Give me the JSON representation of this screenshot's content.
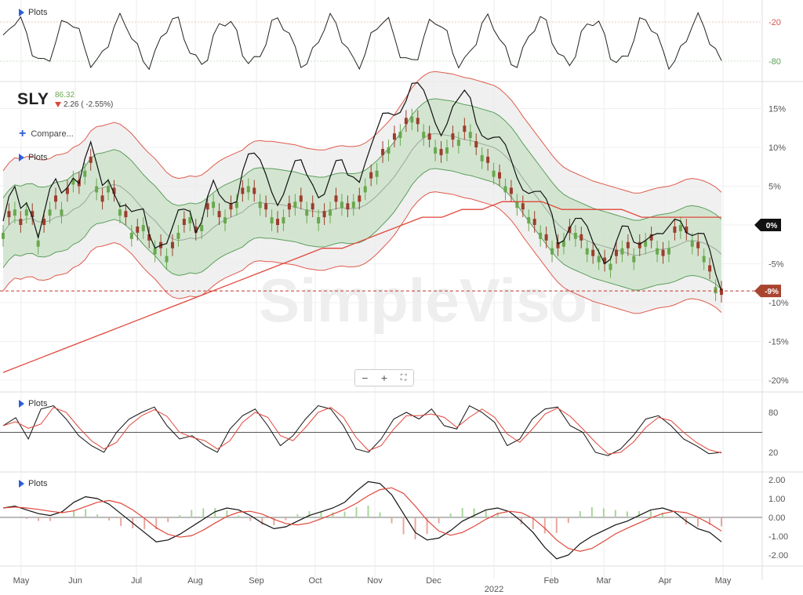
{
  "panels": {
    "top_plots_label": "Plots",
    "main_plots_label": "Plots",
    "stoch_plots_label": "Plots",
    "macd_plots_label": "Plots",
    "compare_label": "Compare..."
  },
  "symbol": {
    "ticker": "SLY",
    "last": "86.32",
    "change": "2.26 ( -2.55%)"
  },
  "watermark": "SimpleVisor",
  "zoom": {
    "minus": "−",
    "plus": "+",
    "fit": "⛶"
  },
  "colors": {
    "price": "#111111",
    "candle_up": "#6aa84f",
    "candle_down": "#9c3d2c",
    "inner_band_fill": "#cfe3cd",
    "inner_band_line": "#5c9e5c",
    "outer_band_fill": "#ececec",
    "outer_band_line": "#e05a4c",
    "ma_long": "#e0463a",
    "ma_mid": "#9aa79a",
    "signal": "#e0463a",
    "overbought_fill": "#f2b8b0",
    "oversold_fill": "#bfe0bf"
  },
  "chart_data": {
    "type": "line",
    "x_labels": [
      "May",
      "Jun",
      "Jul",
      "Aug",
      "Sep",
      "Oct",
      "Nov",
      "Dec",
      "2022",
      "Feb",
      "Mar",
      "Apr",
      "May"
    ],
    "y_ticks_pct": [
      "15%",
      "10%",
      "5%",
      "0%",
      "-5%",
      "-10%",
      "-15%",
      "-20%"
    ],
    "current_marker": "0%",
    "current_price_marker": "-9%",
    "top_oscillator_ticks": [
      "-20",
      "-80"
    ],
    "stochastic_ticks": [
      "80",
      "20"
    ],
    "macd_ticks": [
      "2.00",
      "1.00",
      "0.00",
      "-1.00",
      "-2.00"
    ],
    "price_pct": [
      -1,
      1,
      2,
      0,
      2,
      1,
      -2,
      0,
      2,
      3,
      2,
      4,
      6,
      5,
      7,
      8,
      5,
      3,
      5,
      4,
      2,
      1,
      -1,
      -1,
      0,
      -2,
      -3,
      -3,
      -4,
      -3,
      -1,
      0,
      1,
      -1,
      0,
      2,
      3,
      1,
      1,
      2,
      3,
      4,
      5,
      4,
      3,
      2,
      1,
      0,
      1,
      2,
      3,
      3,
      2,
      2,
      1,
      1,
      2,
      3,
      3,
      2,
      3,
      3,
      5,
      6,
      7,
      9,
      10,
      11,
      12,
      13,
      14,
      13,
      12,
      11,
      10,
      9,
      10,
      11,
      11,
      12,
      12,
      10,
      9,
      8,
      7,
      6,
      5,
      4,
      3,
      2,
      1,
      0,
      -1,
      -2,
      -3,
      -3,
      -2,
      -1,
      -1,
      -2,
      -3,
      -4,
      -4,
      -5,
      -5,
      -4,
      -3,
      -3,
      -4,
      -3,
      -2,
      -2,
      -3,
      -4,
      -3,
      -1,
      0,
      -1,
      -2,
      -3,
      -4,
      -6,
      -8,
      -9
    ],
    "ma_long_pct": [
      -19,
      -18,
      -17,
      -16,
      -15,
      -14,
      -13,
      -12,
      -11,
      -10,
      -9,
      -8,
      -7,
      -6,
      -5,
      -4,
      -3,
      -3,
      -2,
      -1,
      0,
      1,
      1,
      2,
      2,
      3,
      3,
      3,
      2,
      2,
      2,
      2,
      1,
      1,
      1,
      1,
      1
    ],
    "stochastic": [
      60,
      72,
      40,
      85,
      90,
      70,
      45,
      30,
      20,
      50,
      70,
      80,
      88,
      60,
      40,
      45,
      30,
      20,
      55,
      75,
      85,
      60,
      30,
      45,
      70,
      90,
      85,
      60,
      25,
      20,
      40,
      70,
      80,
      70,
      85,
      60,
      55,
      90,
      80,
      65,
      30,
      40,
      70,
      85,
      88,
      60,
      50,
      20,
      15,
      25,
      45,
      70,
      75,
      60,
      40,
      30,
      18,
      20
    ],
    "macd": [
      0.5,
      0.6,
      0.4,
      0.2,
      0.1,
      0.3,
      0.8,
      1.1,
      1.0,
      0.7,
      0.2,
      -0.3,
      -0.8,
      -1.3,
      -1.2,
      -0.9,
      -0.5,
      -0.1,
      0.3,
      0.5,
      0.4,
      0.1,
      -0.3,
      -0.6,
      -0.5,
      -0.2,
      0.1,
      0.3,
      0.5,
      0.8,
      1.4,
      1.9,
      1.8,
      1.2,
      0.2,
      -0.8,
      -1.2,
      -1.1,
      -0.7,
      -0.2,
      0.1,
      0.4,
      0.5,
      0.3,
      -0.2,
      -0.8,
      -1.6,
      -2.2,
      -2.0,
      -1.4,
      -1.0,
      -0.7,
      -0.4,
      -0.2,
      0.1,
      0.4,
      0.5,
      0.3,
      -0.2,
      -0.6,
      -0.8,
      -1.3
    ]
  }
}
